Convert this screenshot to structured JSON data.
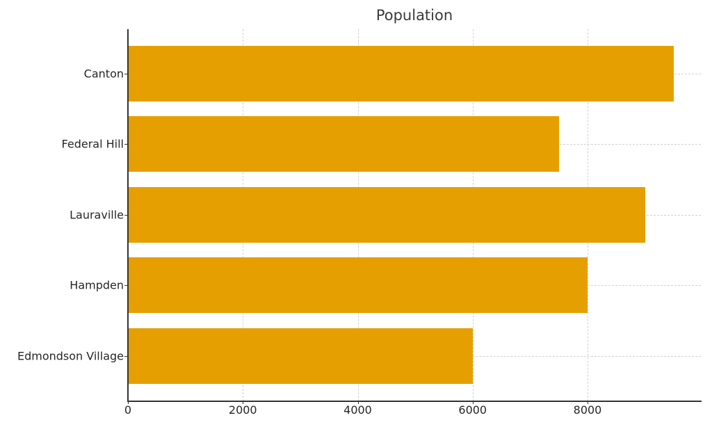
{
  "chart_data": {
    "type": "bar",
    "orientation": "horizontal",
    "title": "Population",
    "xlabel": "",
    "ylabel": "",
    "categories": [
      "Canton",
      "Federal Hill",
      "Lauraville",
      "Hampden",
      "Edmondson Village"
    ],
    "values": [
      9500,
      7500,
      9000,
      8000,
      6000
    ],
    "xlim": [
      0,
      9970
    ],
    "xticks": [
      0,
      2000,
      4000,
      6000,
      8000
    ],
    "grid": true,
    "legend": null,
    "bar_color": "#E69F00"
  },
  "labels": {
    "title": "Population",
    "xticks": [
      "0",
      "2000",
      "4000",
      "6000",
      "8000"
    ],
    "categories": [
      "Canton",
      "Federal Hill",
      "Lauraville",
      "Hampden",
      "Edmondson Village"
    ]
  }
}
